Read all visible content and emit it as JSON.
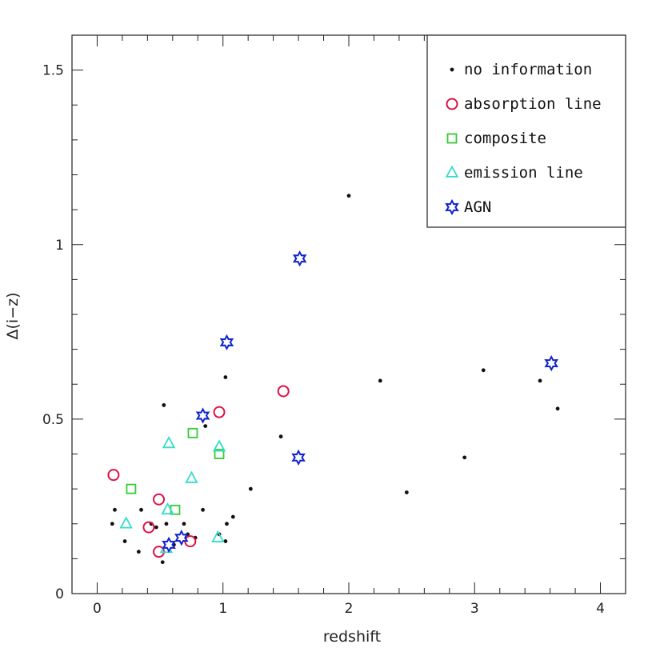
{
  "chart_data": {
    "type": "scatter",
    "xlabel": "redshift",
    "ylabel": "Δ(i−z)",
    "xlim": [
      -0.2,
      4.2
    ],
    "ylim": [
      0,
      1.6
    ],
    "x_ticks": [
      0,
      1,
      2,
      3,
      4
    ],
    "x_tick_labels": [
      "0",
      "1",
      "2",
      "3",
      "4"
    ],
    "y_ticks": [
      0,
      0.5,
      1,
      1.5
    ],
    "y_tick_labels": [
      "0",
      "0.5",
      "1",
      "1.5"
    ],
    "grid": false,
    "legend_position": "top-right",
    "series": [
      {
        "name": "no information",
        "marker": "dot",
        "color": "#111111",
        "points": [
          [
            0.14,
            0.24
          ],
          [
            0.12,
            0.2
          ],
          [
            0.22,
            0.15
          ],
          [
            0.35,
            0.24
          ],
          [
            0.33,
            0.12
          ],
          [
            0.43,
            0.2
          ],
          [
            0.47,
            0.19
          ],
          [
            0.52,
            0.09
          ],
          [
            0.55,
            0.2
          ],
          [
            0.61,
            0.14
          ],
          [
            0.69,
            0.2
          ],
          [
            0.72,
            0.17
          ],
          [
            0.53,
            0.54
          ],
          [
            0.84,
            0.24
          ],
          [
            0.86,
            0.48
          ],
          [
            0.97,
            0.17
          ],
          [
            1.02,
            0.15
          ],
          [
            1.03,
            0.2
          ],
          [
            1.08,
            0.22
          ],
          [
            1.02,
            0.62
          ],
          [
            1.22,
            0.3
          ],
          [
            1.46,
            0.45
          ],
          [
            2.0,
            1.14
          ],
          [
            2.25,
            0.61
          ],
          [
            2.46,
            0.29
          ],
          [
            2.92,
            0.39
          ],
          [
            3.07,
            0.64
          ],
          [
            3.52,
            0.61
          ],
          [
            3.66,
            0.53
          ],
          [
            0.78,
            0.16
          ]
        ]
      },
      {
        "name": "absorption line",
        "marker": "circle",
        "color": "#dd1144",
        "points": [
          [
            0.13,
            0.34
          ],
          [
            0.41,
            0.19
          ],
          [
            0.49,
            0.27
          ],
          [
            0.49,
            0.12
          ],
          [
            0.74,
            0.15
          ],
          [
            0.97,
            0.52
          ],
          [
            1.48,
            0.58
          ]
        ]
      },
      {
        "name": "composite",
        "marker": "square",
        "color": "#33cc33",
        "points": [
          [
            0.27,
            0.3
          ],
          [
            0.62,
            0.24
          ],
          [
            0.76,
            0.46
          ],
          [
            0.97,
            0.4
          ]
        ]
      },
      {
        "name": "emission line",
        "marker": "triangle",
        "color": "#33ddcc",
        "points": [
          [
            0.23,
            0.2
          ],
          [
            0.56,
            0.24
          ],
          [
            0.57,
            0.43
          ],
          [
            0.75,
            0.33
          ],
          [
            0.97,
            0.42
          ],
          [
            0.96,
            0.16
          ],
          [
            0.55,
            0.13
          ]
        ]
      },
      {
        "name": "AGN",
        "marker": "star",
        "color": "#1122cc",
        "points": [
          [
            1.61,
            0.96
          ],
          [
            1.03,
            0.72
          ],
          [
            0.84,
            0.51
          ],
          [
            1.6,
            0.39
          ],
          [
            3.61,
            0.66
          ],
          [
            0.57,
            0.14
          ],
          [
            0.67,
            0.16
          ]
        ]
      }
    ]
  }
}
